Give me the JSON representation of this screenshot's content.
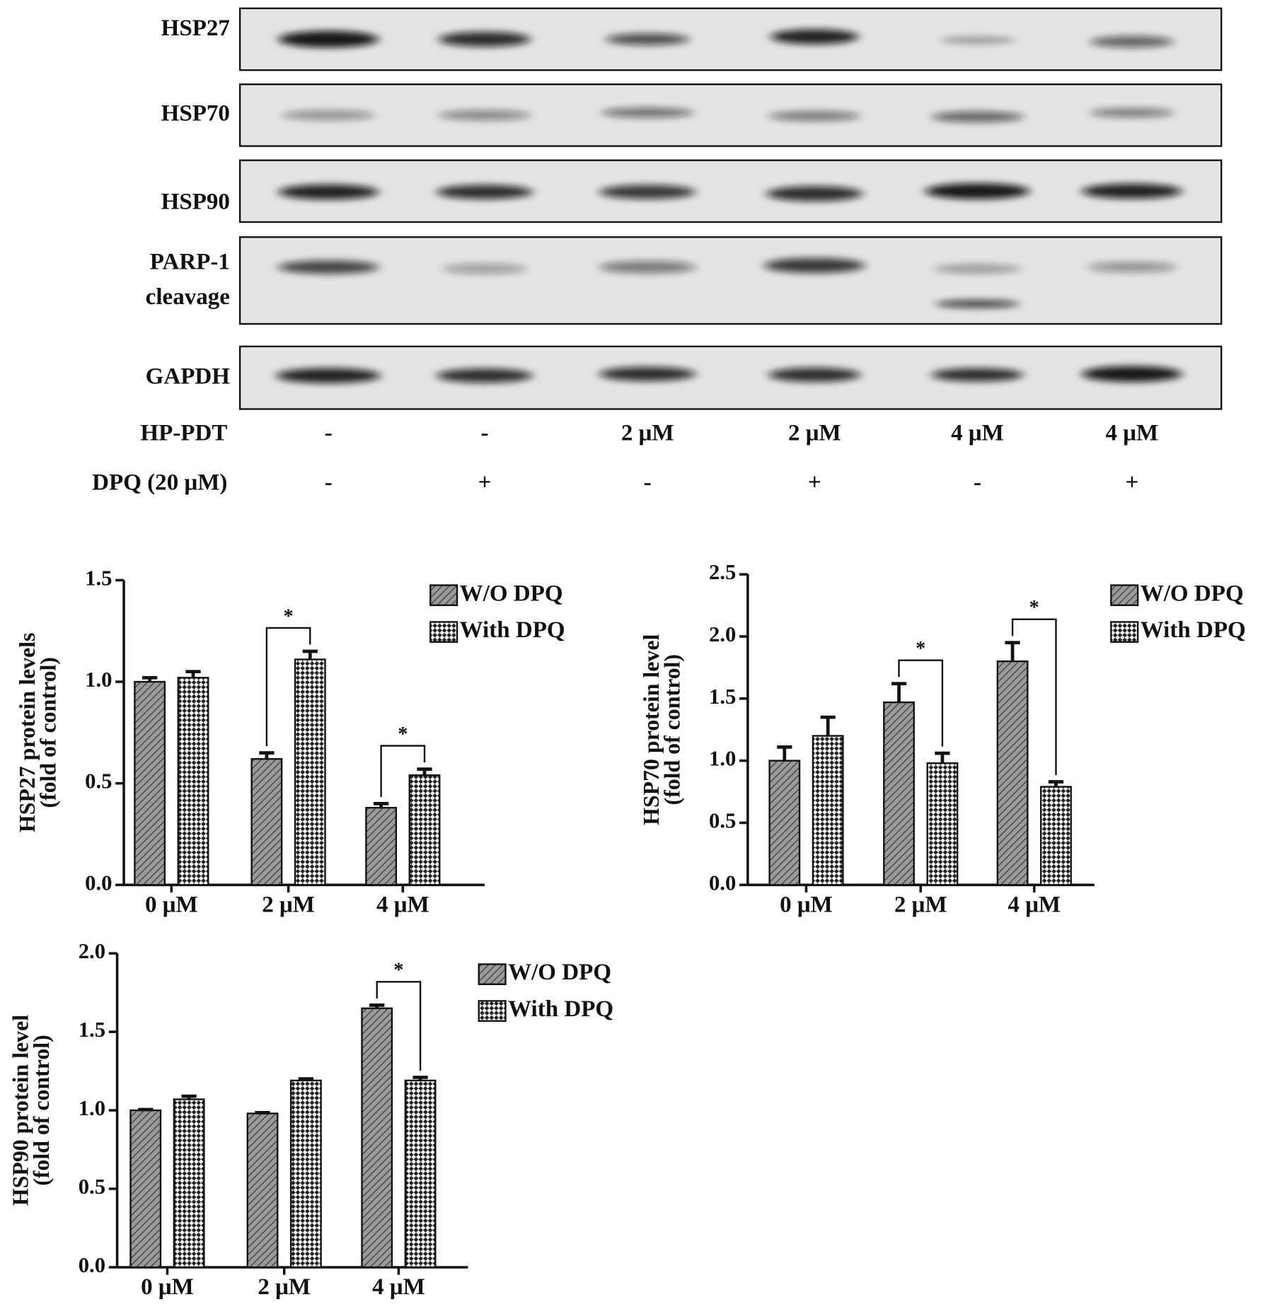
{
  "blot": {
    "rows": [
      "HSP27",
      "HSP70",
      "HSP90",
      "PARP-1",
      "cleavage",
      "GAPDH"
    ],
    "conditions": [
      {
        "label": "HP-PDT",
        "values": [
          "-",
          "-",
          "2 μM",
          "2 μM",
          "4 μM",
          "4 μM"
        ]
      },
      {
        "label": "DPQ (20 μM)",
        "values": [
          "-",
          "+",
          "-",
          "+",
          "-",
          "+"
        ]
      }
    ]
  },
  "chart_data": [
    {
      "type": "bar",
      "ylabel": [
        "HSP27 protein levels",
        "(fold of control)"
      ],
      "categories": [
        "0 μM",
        "2 μM",
        "4 μM"
      ],
      "series": [
        {
          "name": "W/O DPQ",
          "color": "#9a9a9a",
          "pattern": "hatch",
          "values": [
            1.0,
            0.62,
            0.38
          ],
          "errors": [
            0.02,
            0.03,
            0.02
          ]
        },
        {
          "name": "With DPQ",
          "color": "#ffffff",
          "pattern": "checker",
          "values": [
            1.02,
            1.11,
            0.54
          ],
          "errors": [
            0.03,
            0.04,
            0.03
          ]
        }
      ],
      "annotations": [
        {
          "text": "*",
          "category": "2 μM"
        },
        {
          "text": "*",
          "category": "4 μM"
        }
      ],
      "ylim": [
        0,
        1.5
      ],
      "yticks": [
        {
          "value": 0,
          "label": "0.0"
        },
        0.5,
        {
          "value": 1,
          "label": "1.0"
        },
        1.5
      ],
      "legend": "top-right"
    },
    {
      "type": "bar",
      "ylabel": [
        "HSP70 protein level",
        "(fold of control)"
      ],
      "categories": [
        "0 μM",
        "2 μM",
        "4 μM"
      ],
      "series": [
        {
          "name": "W/O DPQ",
          "color": "#9a9a9a",
          "pattern": "hatch",
          "values": [
            1.0,
            1.47,
            1.8
          ],
          "errors": [
            0.11,
            0.15,
            0.15
          ]
        },
        {
          "name": "With DPQ",
          "color": "#ffffff",
          "pattern": "checker",
          "values": [
            1.2,
            0.98,
            0.79
          ],
          "errors": [
            0.15,
            0.08,
            0.04
          ]
        }
      ],
      "annotations": [
        {
          "text": "*",
          "category": "2 μM"
        },
        {
          "text": "*",
          "category": "4 μM"
        }
      ],
      "ylim": [
        0,
        2.5
      ],
      "yticks": [
        {
          "value": 0,
          "label": "0.0"
        },
        0.5,
        {
          "value": 1,
          "label": "1.0"
        },
        1.5,
        {
          "value": 2,
          "label": "2.0"
        },
        2.5
      ],
      "legend": "top-right"
    },
    {
      "type": "bar",
      "ylabel": [
        "HSP90 protein level",
        "(fold of control)"
      ],
      "categories": [
        "0 μM",
        "2 μM",
        "4 μM"
      ],
      "series": [
        {
          "name": "W/O DPQ",
          "color": "#9a9a9a",
          "pattern": "hatch",
          "values": [
            1.0,
            0.98,
            1.65
          ],
          "errors": [
            0.005,
            0.005,
            0.02
          ]
        },
        {
          "name": "With DPQ",
          "color": "#ffffff",
          "pattern": "checker",
          "values": [
            1.07,
            1.19,
            1.19
          ],
          "errors": [
            0.02,
            0.01,
            0.02
          ]
        }
      ],
      "annotations": [
        {
          "text": "*",
          "category": "4 μM"
        }
      ],
      "ylim": [
        0,
        2
      ],
      "yticks": [
        {
          "value": 0,
          "label": "0.0"
        },
        0.5,
        {
          "value": 1,
          "label": "1.0"
        },
        1.5,
        {
          "value": 2,
          "label": "2.0"
        }
      ],
      "legend": "top-right"
    }
  ]
}
